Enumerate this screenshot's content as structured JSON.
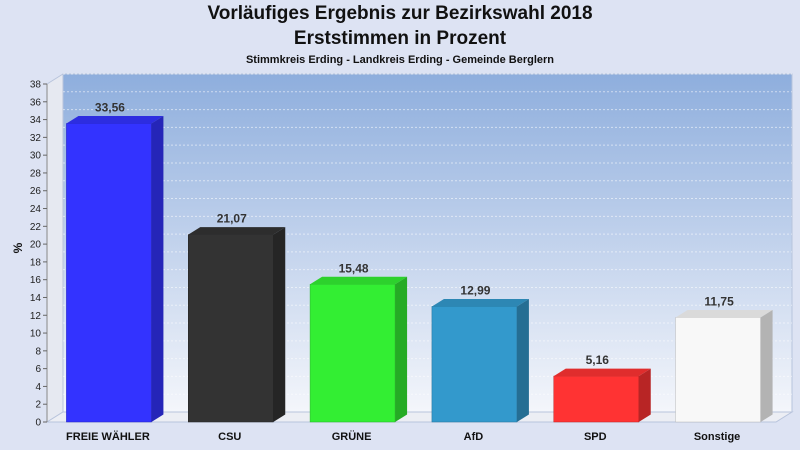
{
  "header": {
    "title_line1": "Vorläufiges Ergebnis zur Bezirkswahl 2018",
    "title_line2": "Erststimmen in Prozent",
    "subtitle": "Stimmkreis Erding - Landkreis Erding - Gemeinde Berglern"
  },
  "chart_data": {
    "type": "bar",
    "title": "Vorläufiges Ergebnis zur Bezirkswahl 2018 – Erststimmen in Prozent",
    "subtitle": "Stimmkreis Erding - Landkreis Erding - Gemeinde Berglern",
    "ylabel": "%",
    "xlabel": "",
    "ylim": [
      0,
      38
    ],
    "ytick_step": 2,
    "grid": true,
    "categories": [
      "FREIE WÄHLER",
      "CSU",
      "GRÜNE",
      "AfD",
      "SPD",
      "Sonstige"
    ],
    "values": [
      33.56,
      21.07,
      15.48,
      12.99,
      5.16,
      11.75
    ],
    "value_labels": [
      "33,56",
      "21,07",
      "15,48",
      "12,99",
      "5,16",
      "11,75"
    ],
    "colors": [
      "#3333ff",
      "#333333",
      "#33ee33",
      "#3399cc",
      "#ff3333",
      "#f8f8f8"
    ]
  }
}
